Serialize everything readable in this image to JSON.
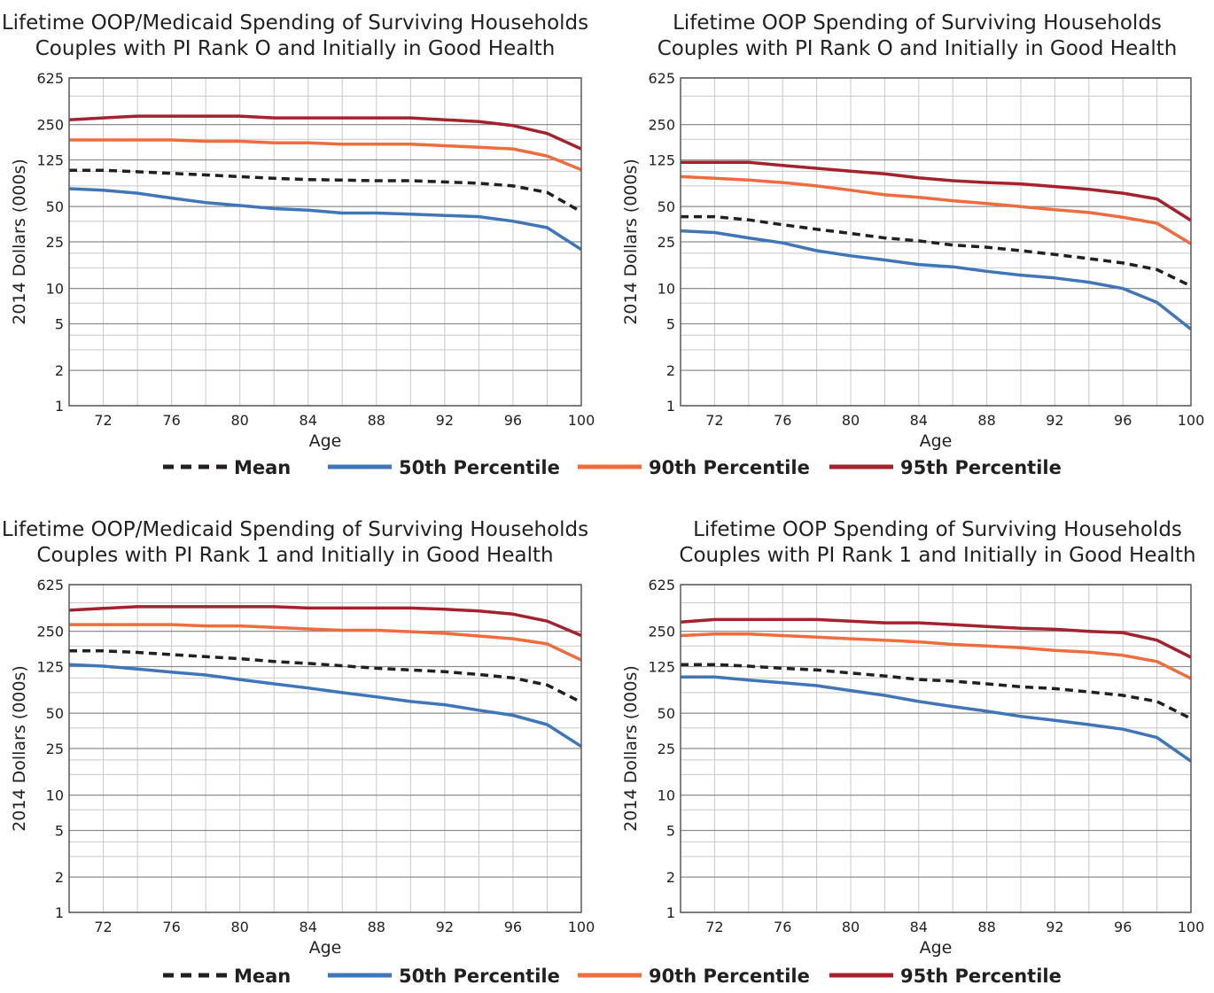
{
  "legends": [
    {
      "items": [
        {
          "label": "Mean",
          "color": "#231f20",
          "dashed": true
        },
        {
          "label": "50th Percentile",
          "color": "#3f76b7",
          "dashed": false
        },
        {
          "label": "90th Percentile",
          "color": "#ef6c3f",
          "dashed": false
        },
        {
          "label": "95th Percentile",
          "color": "#a3222d",
          "dashed": false
        }
      ]
    },
    {
      "items": [
        {
          "label": "Mean",
          "color": "#231f20",
          "dashed": true
        },
        {
          "label": "50th Percentile",
          "color": "#3f76b7",
          "dashed": false
        },
        {
          "label": "90th Percentile",
          "color": "#ef6c3f",
          "dashed": false
        },
        {
          "label": "95th Percentile",
          "color": "#a3222d",
          "dashed": false
        }
      ]
    }
  ],
  "chart_data": [
    {
      "type": "line",
      "title": [
        "Lifetime OOP/Medicaid Spending of Surviving Households",
        "Couples with PI Rank O and Initially in Good Health"
      ],
      "xlabel": "Age",
      "ylabel": "2014 Dollars (000s)",
      "yscale": "log",
      "ylim": [
        1,
        625
      ],
      "xlim": [
        70,
        100
      ],
      "xticks": [
        72,
        76,
        80,
        84,
        88,
        92,
        96,
        100
      ],
      "yticks": [
        1,
        2,
        5,
        10,
        25,
        50,
        125,
        250,
        625
      ],
      "grid": true,
      "x": [
        70,
        72,
        74,
        76,
        78,
        80,
        82,
        84,
        86,
        88,
        90,
        92,
        94,
        96,
        98,
        100
      ],
      "series": [
        {
          "name": "Mean",
          "color": "#231f20",
          "dashed": true,
          "values": [
            102,
            102,
            99,
            96,
            93,
            90,
            87,
            85,
            84,
            83,
            83,
            81,
            79,
            75,
            66,
            45
          ]
        },
        {
          "name": "50th Percentile",
          "color": "#3f76b7",
          "dashed": false,
          "values": [
            71,
            69,
            65,
            59,
            54,
            51,
            48,
            46.5,
            44,
            44,
            43,
            42,
            41,
            37.5,
            33,
            21.5
          ]
        },
        {
          "name": "90th Percentile",
          "color": "#ef6c3f",
          "dashed": false,
          "values": [
            185,
            185,
            185,
            185,
            180,
            180,
            175,
            175,
            170,
            170,
            170,
            165,
            160,
            155,
            135,
            103
          ]
        },
        {
          "name": "95th Percentile",
          "color": "#a3222d",
          "dashed": false,
          "values": [
            275,
            285,
            295,
            295,
            295,
            295,
            285,
            285,
            285,
            285,
            285,
            275,
            265,
            245,
            210,
            155
          ]
        }
      ]
    },
    {
      "type": "line",
      "title": [
        "Lifetime OOP Spending of Surviving Households",
        "Couples with PI Rank O and Initially in Good Health"
      ],
      "xlabel": "Age",
      "ylabel": "2014 Dollars (000s)",
      "yscale": "log",
      "ylim": [
        1,
        625
      ],
      "xlim": [
        70,
        100
      ],
      "xticks": [
        72,
        76,
        80,
        84,
        88,
        92,
        96,
        100
      ],
      "yticks": [
        1,
        2,
        5,
        10,
        25,
        50,
        125,
        250,
        625
      ],
      "grid": true,
      "x": [
        70,
        72,
        74,
        76,
        78,
        80,
        82,
        84,
        86,
        88,
        90,
        92,
        94,
        96,
        98,
        100
      ],
      "series": [
        {
          "name": "Mean",
          "color": "#231f20",
          "dashed": true,
          "values": [
            41,
            41,
            38.5,
            35,
            32,
            29.5,
            27,
            25.5,
            23.5,
            22.5,
            21,
            19.5,
            18,
            16.5,
            14.5,
            10.5
          ]
        },
        {
          "name": "50th Percentile",
          "color": "#3f76b7",
          "dashed": false,
          "values": [
            31,
            30,
            27,
            24.5,
            21,
            19,
            17.5,
            16,
            15.3,
            14,
            13,
            12.3,
            11.3,
            10,
            7.6,
            4.5
          ]
        },
        {
          "name": "90th Percentile",
          "color": "#ef6c3f",
          "dashed": false,
          "values": [
            90,
            87,
            84,
            80,
            75,
            69,
            63,
            60,
            56,
            53,
            50,
            47,
            44.5,
            40.5,
            36,
            24
          ]
        },
        {
          "name": "95th Percentile",
          "color": "#a3222d",
          "dashed": false,
          "values": [
            119,
            119,
            119,
            112,
            106,
            100,
            95,
            88,
            83,
            80,
            78,
            74,
            70,
            65,
            58,
            38
          ]
        }
      ]
    },
    {
      "type": "line",
      "title": [
        "Lifetime OOP/Medicaid Spending of Surviving Households",
        "Couples with PI Rank 1 and Initially in Good Health"
      ],
      "xlabel": "Age",
      "ylabel": "2014 Dollars (000s)",
      "yscale": "log",
      "ylim": [
        1,
        625
      ],
      "xlim": [
        70,
        100
      ],
      "xticks": [
        72,
        76,
        80,
        84,
        88,
        92,
        96,
        100
      ],
      "yticks": [
        1,
        2,
        5,
        10,
        25,
        50,
        125,
        250,
        625
      ],
      "grid": true,
      "x": [
        70,
        72,
        74,
        76,
        78,
        80,
        82,
        84,
        86,
        88,
        90,
        92,
        94,
        96,
        98,
        100
      ],
      "series": [
        {
          "name": "Mean",
          "color": "#231f20",
          "dashed": true,
          "values": [
            170,
            170,
            165,
            158,
            152,
            146,
            138,
            133,
            127,
            121,
            117,
            113,
            107,
            100,
            87,
            62
          ]
        },
        {
          "name": "50th Percentile",
          "color": "#3f76b7",
          "dashed": false,
          "values": [
            130,
            126,
            119,
            112,
            106,
            97,
            89,
            82,
            75,
            69,
            63,
            59,
            53,
            48,
            40,
            26
          ]
        },
        {
          "name": "90th Percentile",
          "color": "#ef6c3f",
          "dashed": false,
          "values": [
            285,
            285,
            285,
            285,
            278,
            278,
            270,
            262,
            255,
            255,
            248,
            240,
            228,
            216,
            195,
            142
          ]
        },
        {
          "name": "95th Percentile",
          "color": "#a3222d",
          "dashed": false,
          "values": [
            378,
            392,
            405,
            405,
            405,
            405,
            405,
            395,
            395,
            395,
            395,
            385,
            372,
            350,
            305,
            230
          ]
        }
      ]
    },
    {
      "type": "line",
      "title": [
        "Lifetime OOP Spending of Surviving Households",
        "Couples with PI Rank 1 and Initially in Good Health"
      ],
      "xlabel": "Age",
      "ylabel": "2014 Dollars (000s)",
      "yscale": "log",
      "ylim": [
        1,
        625
      ],
      "xlim": [
        70,
        100
      ],
      "xticks": [
        72,
        76,
        80,
        84,
        88,
        92,
        96,
        100
      ],
      "yticks": [
        1,
        2,
        5,
        10,
        25,
        50,
        125,
        250,
        625
      ],
      "grid": true,
      "x": [
        70,
        72,
        74,
        76,
        78,
        80,
        82,
        84,
        86,
        88,
        90,
        92,
        94,
        96,
        98,
        100
      ],
      "series": [
        {
          "name": "Mean",
          "color": "#231f20",
          "dashed": true,
          "values": [
            130,
            130,
            126,
            121,
            117,
            110,
            104,
            97,
            94,
            89,
            84,
            81,
            76,
            71,
            63,
            45
          ]
        },
        {
          "name": "50th Percentile",
          "color": "#3f76b7",
          "dashed": false,
          "values": [
            102,
            102,
            96,
            91,
            86,
            78,
            71,
            63,
            57,
            52,
            47,
            43.5,
            40,
            36.5,
            31,
            19.5
          ]
        },
        {
          "name": "90th Percentile",
          "color": "#ef6c3f",
          "dashed": false,
          "values": [
            230,
            237,
            237,
            230,
            223,
            216,
            210,
            203,
            193,
            187,
            181,
            172,
            166,
            156,
            138,
            99
          ]
        },
        {
          "name": "95th Percentile",
          "color": "#a3222d",
          "dashed": false,
          "values": [
            300,
            315,
            315,
            315,
            315,
            305,
            295,
            295,
            285,
            275,
            265,
            260,
            250,
            243,
            210,
            150
          ]
        }
      ]
    }
  ]
}
